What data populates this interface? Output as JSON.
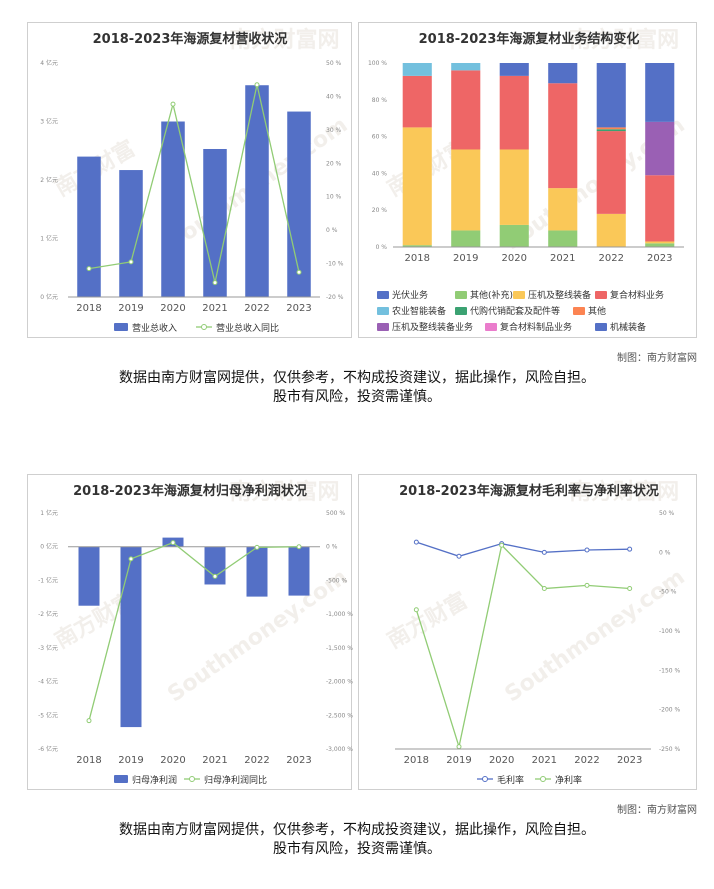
{
  "charts": [
    {
      "id": "c1",
      "title": "2018-2023年海源复材营收状况",
      "type": "bar+line",
      "categories": [
        "2018",
        "2019",
        "2020",
        "2021",
        "2022",
        "2023"
      ],
      "y_left_ticks": [
        "0 亿元",
        "1 亿元",
        "2 亿元",
        "3 亿元",
        "4 亿元"
      ],
      "y_right_ticks": [
        "-20 %",
        "-10 %",
        "0 %",
        "10 %",
        "20 %",
        "30 %",
        "40 %",
        "50 %"
      ],
      "legend": [
        "营业总收入",
        "营业总收入同比"
      ],
      "colors": {
        "bar": "#5470c6",
        "line": "#91cc75"
      }
    },
    {
      "id": "c2",
      "title": "2018-2023年海源复材业务结构变化",
      "type": "stacked-bar-percent",
      "categories": [
        "2018",
        "2019",
        "2020",
        "2021",
        "2022",
        "2023"
      ],
      "y_ticks": [
        "0 %",
        "20 %",
        "40 %",
        "60 %",
        "80 %",
        "100 %"
      ],
      "legend": [
        "光伏业务",
        "其他(补充)",
        "压机及整线装备",
        "复合材料业务",
        "农业智能装备",
        "代购代销配套及配件等",
        "其他",
        "压机及整线装备业务",
        "复合材料制品业务",
        "机械装备"
      ]
    },
    {
      "id": "c3",
      "title": "2018-2023年海源复材归母净利润状况",
      "type": "bar+line",
      "categories": [
        "2018",
        "2019",
        "2020",
        "2021",
        "2022",
        "2023"
      ],
      "y_left_ticks": [
        "1 亿元",
        "0 亿元",
        "-1 亿元",
        "-2 亿元",
        "-3 亿元",
        "-4 亿元",
        "-5 亿元",
        "-6 亿元"
      ],
      "y_right_ticks": [
        "500 %",
        "0 %",
        "-500 %",
        "-1,000 %",
        "-1,500 %",
        "-2,000 %",
        "-2,500 %",
        "-3,000 %"
      ],
      "legend": [
        "归母净利润",
        "归母净利润同比"
      ],
      "colors": {
        "bar": "#5470c6",
        "line": "#91cc75"
      }
    },
    {
      "id": "c4",
      "title": "2018-2023年海源复材毛利率与净利率状况",
      "type": "line",
      "categories": [
        "2018",
        "2019",
        "2020",
        "2021",
        "2022",
        "2023"
      ],
      "y_right_ticks": [
        "50 %",
        "0 %",
        "-50 %",
        "-100 %",
        "-150 %",
        "-200 %",
        "-250 %"
      ],
      "legend": [
        "毛利率",
        "净利率"
      ],
      "colors": {
        "s1": "#5470c6",
        "s2": "#91cc75"
      }
    }
  ],
  "chart_data": [
    {
      "type": "bar",
      "title": "2018-2023年海源复材营收状况",
      "categories": [
        "2018",
        "2019",
        "2020",
        "2021",
        "2022",
        "2023"
      ],
      "series": [
        {
          "name": "营业总收入",
          "unit": "亿元",
          "values": [
            2.4,
            2.17,
            3.0,
            2.53,
            3.62,
            3.17
          ]
        },
        {
          "name": "营业总收入同比",
          "unit": "%",
          "values": [
            -11.5,
            -9.5,
            37.7,
            -15.7,
            43.5,
            -12.6
          ]
        }
      ],
      "ylim_left": [
        0,
        4
      ],
      "ylim_right": [
        -20,
        50
      ]
    },
    {
      "type": "bar",
      "stacked": true,
      "title": "2018-2023年海源复材业务结构变化",
      "categories": [
        "2018",
        "2019",
        "2020",
        "2021",
        "2022",
        "2023"
      ],
      "series": [
        {
          "name": "光伏业务",
          "color": "#5470c6",
          "values": [
            0,
            0,
            0,
            0,
            0,
            0
          ]
        },
        {
          "name": "其他(补充)",
          "color": "#91cc75",
          "values": [
            1,
            9,
            12,
            9,
            0,
            2
          ]
        },
        {
          "name": "压机及整线装备",
          "color": "#fac858",
          "values": [
            64,
            44,
            41,
            23,
            18,
            1
          ]
        },
        {
          "name": "复合材料业务",
          "color": "#ee6666",
          "values": [
            28,
            43,
            40,
            57,
            45,
            36
          ]
        },
        {
          "name": "农业智能装备",
          "color": "#73c0de",
          "values": [
            7,
            4,
            0,
            0,
            0,
            0
          ]
        },
        {
          "name": "代购代销配套及配件等",
          "color": "#3ba272",
          "values": [
            0,
            0,
            0,
            0,
            1,
            0
          ]
        },
        {
          "name": "其他",
          "color": "#fc8452",
          "values": [
            0,
            0,
            0,
            0,
            1,
            0
          ]
        },
        {
          "name": "压机及整线装备业务",
          "color": "#9a60b4",
          "values": [
            0,
            0,
            0,
            0,
            0,
            29
          ]
        },
        {
          "name": "复合材料制品业务",
          "color": "#ea7ccc",
          "values": [
            0,
            0,
            0,
            0,
            0,
            0
          ]
        },
        {
          "name": "机械装备",
          "color": "#5470c6",
          "values": [
            0,
            0,
            7,
            11,
            35,
            32
          ]
        }
      ],
      "ylim": [
        0,
        100
      ]
    },
    {
      "type": "bar",
      "title": "2018-2023年海源复材归母净利润状况",
      "categories": [
        "2018",
        "2019",
        "2020",
        "2021",
        "2022",
        "2023"
      ],
      "series": [
        {
          "name": "归母净利润",
          "unit": "亿元",
          "values": [
            -1.75,
            -5.35,
            0.27,
            -1.12,
            -1.48,
            -1.45
          ]
        },
        {
          "name": "归母净利润同比",
          "unit": "%",
          "values": [
            -2580,
            -180,
            60,
            -440,
            -10,
            0
          ]
        }
      ],
      "ylim_left": [
        -6,
        1
      ],
      "ylim_right": [
        -3000,
        500
      ]
    },
    {
      "type": "line",
      "title": "2018-2023年海源复材毛利率与净利率状况",
      "categories": [
        "2018",
        "2019",
        "2020",
        "2021",
        "2022",
        "2023"
      ],
      "series": [
        {
          "name": "毛利率",
          "unit": "%",
          "values": [
            13,
            -5,
            11,
            0,
            3,
            4
          ]
        },
        {
          "name": "净利率",
          "unit": "%",
          "values": [
            -73,
            -247,
            9,
            -46,
            -42,
            -46
          ]
        }
      ],
      "ylim": [
        -250,
        50
      ]
    }
  ],
  "credits": [
    "制图：南方财富网",
    "制图：南方财富网"
  ],
  "disclaimer": {
    "line1": "数据由南方财富网提供，仅供参考，不构成投资建议，据此操作，风险自担。",
    "line2": "股市有风险，投资需谨慎。"
  },
  "watermark": [
    "南方财富",
    "南方财富网",
    "Southmoney.com"
  ]
}
